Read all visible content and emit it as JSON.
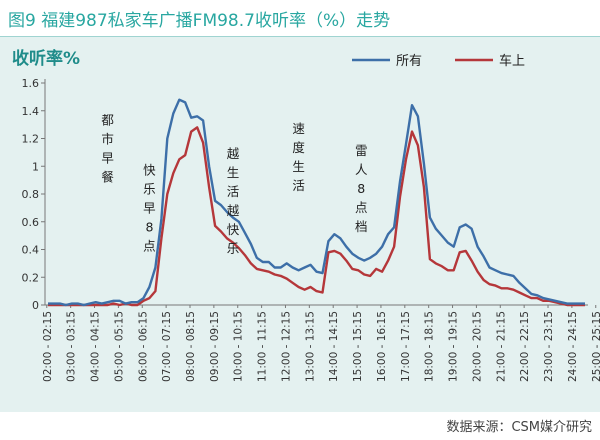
{
  "figure_title": "图9 福建987私家车广播FM98.7收听率（%）走势",
  "source": "数据来源：CSM媒介研究",
  "colors": {
    "title": "#29a7a1",
    "panel_bg": "#e4f1f0",
    "series_all": "#3d6fa8",
    "series_car": "#b5373a",
    "ylabel": "#1f8c8a"
  },
  "chart_data": {
    "type": "line",
    "title": "",
    "ylabel": "收听率%",
    "xlabel": "",
    "ylim": [
      0,
      1.6
    ],
    "yticks": [
      "0",
      "0.2",
      "0.4",
      "0.6",
      "0.8",
      "1",
      "1.2",
      "1.4",
      "1.6"
    ],
    "ytick_values": [
      0,
      0.2,
      0.4,
      0.6,
      0.8,
      1.0,
      1.2,
      1.4,
      1.6
    ],
    "grid": false,
    "legend": "top-right",
    "x_tick_labels": [
      "02:00 - 02:15",
      "03:00 - 03:15",
      "04:00 - 04:15",
      "05:00 - 05:15",
      "06:00 - 06:15",
      "07:00 - 07:15",
      "08:00 - 08:15",
      "09:00 - 09:15",
      "10:00 - 10:15",
      "11:00 - 11:15",
      "12:00 - 12:15",
      "13:00 - 13:15",
      "14:00 - 14:15",
      "15:00 - 15:15",
      "16:00 - 16:15",
      "17:00 - 17:15",
      "18:00 - 18:15",
      "19:00 - 19:15",
      "20:00 - 20:15",
      "21:00 - 21:15",
      "22:00 - 22:15",
      "23:00 - 23:15",
      "24:00 - 24:15",
      "25:00 - 25:15"
    ],
    "series": [
      {
        "name": "所有",
        "values": [
          0.01,
          0.01,
          0.01,
          0.0,
          0.01,
          0.01,
          0.0,
          0.01,
          0.02,
          0.01,
          0.02,
          0.03,
          0.03,
          0.01,
          0.02,
          0.02,
          0.05,
          0.13,
          0.27,
          0.62,
          1.2,
          1.38,
          1.48,
          1.46,
          1.35,
          1.36,
          1.33,
          1.0,
          0.75,
          0.72,
          0.67,
          0.63,
          0.6,
          0.52,
          0.44,
          0.34,
          0.31,
          0.31,
          0.27,
          0.27,
          0.3,
          0.27,
          0.25,
          0.27,
          0.29,
          0.24,
          0.23,
          0.46,
          0.51,
          0.48,
          0.42,
          0.37,
          0.34,
          0.32,
          0.34,
          0.37,
          0.42,
          0.51,
          0.56,
          0.89,
          1.16,
          1.44,
          1.36,
          1.02,
          0.63,
          0.55,
          0.5,
          0.45,
          0.42,
          0.56,
          0.58,
          0.55,
          0.42,
          0.35,
          0.27,
          0.25,
          0.23,
          0.22,
          0.21,
          0.16,
          0.12,
          0.08,
          0.07,
          0.05,
          0.04,
          0.03,
          0.02,
          0.01,
          0.01,
          0.01,
          0.01
        ]
      },
      {
        "name": "车上",
        "values": [
          0.0,
          0.0,
          0.0,
          0.0,
          0.0,
          0.0,
          0.0,
          0.0,
          0.0,
          0.0,
          0.0,
          0.01,
          0.0,
          0.01,
          0.0,
          0.0,
          0.03,
          0.05,
          0.1,
          0.48,
          0.8,
          0.95,
          1.05,
          1.08,
          1.25,
          1.28,
          1.17,
          0.85,
          0.57,
          0.53,
          0.48,
          0.45,
          0.41,
          0.36,
          0.3,
          0.26,
          0.25,
          0.24,
          0.22,
          0.21,
          0.19,
          0.16,
          0.13,
          0.11,
          0.13,
          0.1,
          0.09,
          0.38,
          0.39,
          0.37,
          0.32,
          0.26,
          0.25,
          0.22,
          0.21,
          0.26,
          0.24,
          0.32,
          0.42,
          0.78,
          1.05,
          1.25,
          1.15,
          0.85,
          0.33,
          0.3,
          0.28,
          0.25,
          0.25,
          0.38,
          0.39,
          0.32,
          0.24,
          0.18,
          0.15,
          0.14,
          0.12,
          0.12,
          0.11,
          0.09,
          0.07,
          0.05,
          0.05,
          0.03,
          0.03,
          0.02,
          0.01,
          0.0,
          0.0,
          0.0,
          0.0
        ]
      }
    ],
    "annotations": [
      {
        "text": "都市早餐",
        "x_index": 10.5,
        "y": 1.3
      },
      {
        "text": "快乐早8点",
        "x_index": 17.5,
        "y": 0.94
      },
      {
        "text": "越生活越快乐",
        "x_index": 31.5,
        "y": 1.06
      },
      {
        "text": "速度生活",
        "x_index": 42.5,
        "y": 1.24
      },
      {
        "text": "雷人8点档",
        "x_index": 53.0,
        "y": 1.08
      }
    ]
  }
}
